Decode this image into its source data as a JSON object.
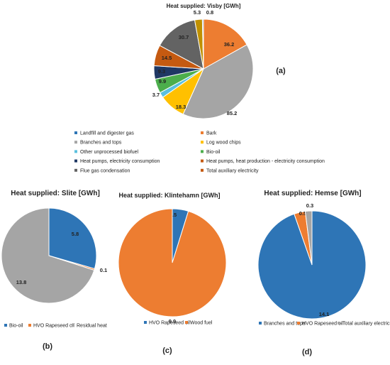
{
  "chart_data": [
    {
      "type": "pie",
      "title": "Heat supplied: Visby [GWh]",
      "panel": "(a)",
      "series": [
        {
          "name": "Landfill and digester gas",
          "value": 0,
          "color": "#2e75b6"
        },
        {
          "name": "Bark",
          "value": 36.2,
          "color": "#ed7d31"
        },
        {
          "name": "Branches and tops",
          "value": 85.2,
          "color": "#a5a5a5"
        },
        {
          "name": "Log wood chips",
          "value": 18.3,
          "color": "#ffc000"
        },
        {
          "name": "Other unprocessed biofuel",
          "value": 3.7,
          "color": "#5bc0de"
        },
        {
          "name": "Bio-oil",
          "value": 9.9,
          "color": "#4cae4c"
        },
        {
          "name": "Heat pumps, electricity consumption",
          "value": 9.3,
          "color": "#1f3864"
        },
        {
          "name": "Heat pumps, heat production - electricity consumption",
          "value": 14.5,
          "color": "#c55a11"
        },
        {
          "name": "Flue gas condensation",
          "value": 30.7,
          "color": "#636363"
        },
        {
          "name": "Total auxiliary electricity",
          "value": 5.3,
          "color": "#bf9000"
        },
        {
          "name": "",
          "value": 0.8,
          "color": "#7fa9d5"
        }
      ],
      "legend": [
        {
          "name": "Landfill and digester gas",
          "color": "#2e75b6"
        },
        {
          "name": "Bark",
          "color": "#ed7d31"
        },
        {
          "name": "Branches and tops",
          "color": "#a5a5a5"
        },
        {
          "name": "Log wood chips",
          "color": "#ffc000"
        },
        {
          "name": "Other unprocessed biofuel",
          "color": "#5bc0de"
        },
        {
          "name": "Bio-oil",
          "color": "#4cae4c"
        },
        {
          "name": "Heat pumps, electricity consumption",
          "color": "#1f3864"
        },
        {
          "name": "Heat pumps, heat production - electricity consumption",
          "color": "#c55a11"
        },
        {
          "name": "Flue gas condensation",
          "color": "#636363"
        },
        {
          "name": "Total auxiliary electricity",
          "color": "#c55a11"
        }
      ]
    },
    {
      "type": "pie",
      "title": "Heat supplied: Slite [GWh]",
      "panel": "(b)",
      "series": [
        {
          "name": "Bio-oil",
          "value": 5.8,
          "color": "#2e75b6"
        },
        {
          "name": "HVO Rapeseed oil",
          "value": 0.1,
          "color": "#ed7d31"
        },
        {
          "name": "Residual heat",
          "value": 13.8,
          "color": "#a5a5a5"
        }
      ]
    },
    {
      "type": "pie",
      "title": "Heat supplied: Klintehamn [GWh]",
      "panel": "(c)",
      "series": [
        {
          "name": "HVO Rapeseed oil",
          "value": 0.5,
          "color": "#2e75b6"
        },
        {
          "name": "Wood fuel",
          "value": 9.9,
          "color": "#ed7d31"
        }
      ]
    },
    {
      "type": "pie",
      "title": "Heat supplied: Hemse [GWh]",
      "panel": "(d)",
      "series": [
        {
          "name": "Branches and tops",
          "value": 14.1,
          "color": "#2e75b6"
        },
        {
          "name": "HVO Rapeseed oil",
          "value": 0.5,
          "color": "#ed7d31"
        },
        {
          "name": "Total auxiliary electricity",
          "value": 0.3,
          "color": "#a5a5a5"
        }
      ]
    }
  ]
}
